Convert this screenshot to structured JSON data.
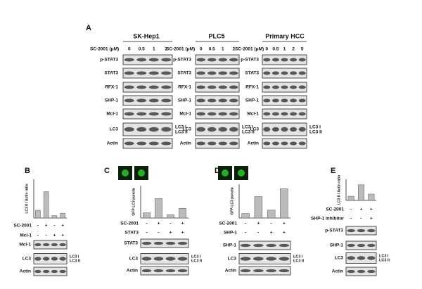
{
  "panel_a": {
    "label": "A",
    "blots": [
      {
        "title": "SK-Hep1",
        "dose_label": "SC-2001 (μM)",
        "doses": [
          "0",
          "0.5",
          "1",
          "2"
        ],
        "rows": [
          "p-STAT3",
          "STAT3",
          "RFX-1",
          "SHP-1",
          "Mcl-1",
          "LC3",
          "Actin"
        ],
        "lc3_labels": [
          "LC3 I",
          "LC3 II"
        ]
      },
      {
        "title": "PLC5",
        "dose_label": "SC-2001 (μM)",
        "doses": [
          "0",
          "0.5",
          "1",
          "2"
        ],
        "rows": [
          "p-STAT3",
          "STAT3",
          "RFX-1",
          "SHP-1",
          "Mcl-1",
          "LC3",
          "Actin"
        ],
        "lc3_labels": [
          "LC3 I",
          "LC3 II"
        ]
      },
      {
        "title": "Primary HCC",
        "dose_label": "SC-2001 (μM)",
        "doses": [
          "0",
          "0.5",
          "1",
          "2",
          "5"
        ],
        "rows": [
          "p-STAT3",
          "STAT3",
          "RFX-1",
          "SHP-1",
          "Mcl-1",
          "LC3",
          "Actin"
        ],
        "lc3_labels": [
          "LC3 I",
          "LC3 II"
        ]
      }
    ]
  },
  "panels": [
    {
      "label": "B",
      "y_label": "LC3 II / Actin ratio",
      "ylim": [
        0,
        5
      ],
      "bars": [
        1,
        3.4,
        0.3,
        0.6
      ],
      "treatments": [
        {
          "name": "SC-2001",
          "signs": [
            "-",
            "+",
            "-",
            "+"
          ]
        },
        {
          "name": "Mcl-1",
          "signs": [
            "-",
            "-",
            "+",
            "+"
          ]
        }
      ],
      "blots": [
        "Mcl-1",
        "LC3",
        "Actin"
      ],
      "lc3_labels": [
        "LC3 I",
        "LC3 II"
      ]
    },
    {
      "label": "C",
      "y_label": "GFP-LC3 puncta",
      "ylim": [
        0,
        5
      ],
      "bars": [
        0.8,
        3.0,
        0.5,
        1.5
      ],
      "treatments": [
        {
          "name": "SC-2001",
          "signs": [
            "-",
            "+",
            "-",
            "+"
          ]
        },
        {
          "name": "STAT3",
          "signs": [
            "-",
            "-",
            "+",
            "+"
          ]
        }
      ],
      "blots": [
        "STAT3",
        "LC3",
        "Actin"
      ],
      "lc3_labels": [
        "LC3 I",
        "LC3 II"
      ]
    },
    {
      "label": "D",
      "y_label": "GFP-LC3 puncta",
      "ylim": [
        0,
        6
      ],
      "bars": [
        0.8,
        3.8,
        1.4,
        5.2
      ],
      "treatments": [
        {
          "name": "SC-2001",
          "signs": [
            "-",
            "+",
            "-",
            "+"
          ]
        },
        {
          "name": "SHP-1",
          "signs": [
            "-",
            "-",
            "+",
            "+"
          ]
        }
      ],
      "blots": [
        "SHP-1",
        "LC3",
        "Actin"
      ],
      "lc3_labels": [
        "LC3 I",
        "LC3 II"
      ]
    },
    {
      "label": "E",
      "y_label": "LC3 II / Actin ratio",
      "ylim": [
        0,
        5
      ],
      "bars": [
        1,
        3.7,
        1.5
      ],
      "treatments": [
        {
          "name": "SC-2001",
          "signs": [
            "-",
            "+",
            "+"
          ]
        },
        {
          "name": "SHP-1 inhibitor",
          "signs": [
            "-",
            "-",
            "+"
          ]
        }
      ],
      "blots": [
        "p-STAT3",
        "SHP-1",
        "LC3",
        "Actin"
      ],
      "lc3_labels": [
        "LC3 I",
        "LC3 II"
      ]
    }
  ]
}
